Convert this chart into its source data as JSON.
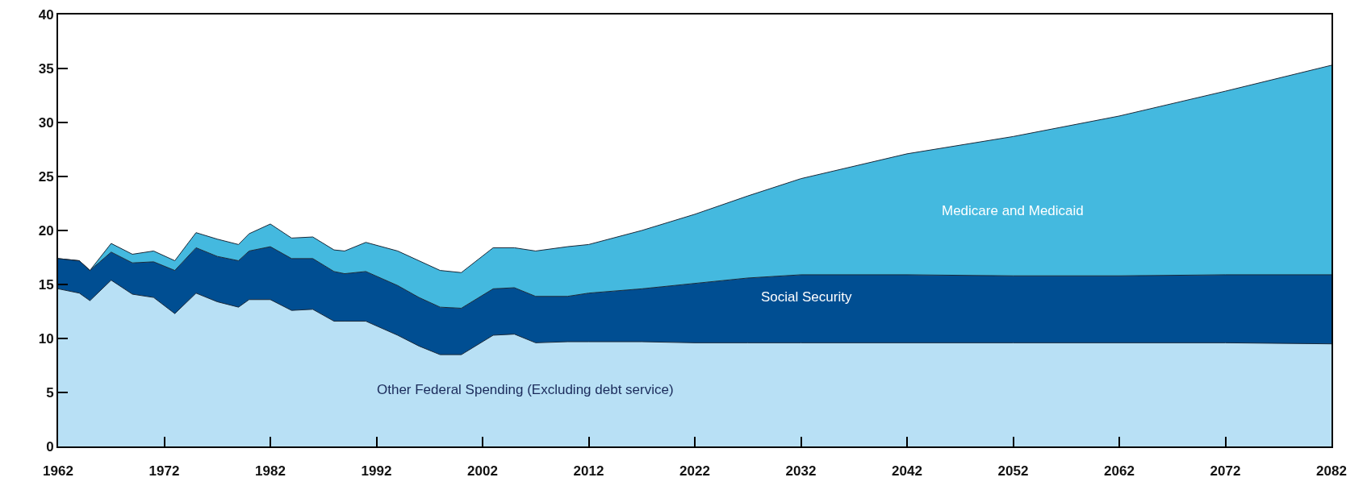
{
  "chart_data": {
    "type": "area",
    "stacked": true,
    "x": [
      1962,
      1964,
      1965,
      1967,
      1969,
      1971,
      1973,
      1975,
      1977,
      1979,
      1980,
      1982,
      1984,
      1986,
      1988,
      1989,
      1991,
      1994,
      1996,
      1998,
      2000,
      2003,
      2005,
      2007,
      2010,
      2012,
      2017,
      2022,
      2027,
      2032,
      2042,
      2052,
      2062,
      2072,
      2082
    ],
    "series": [
      {
        "name": "Other Federal Spending (Excluding debt service)",
        "color": "#b8e0f5",
        "values": [
          14.6,
          14.2,
          13.5,
          15.4,
          14.1,
          13.8,
          12.3,
          14.2,
          13.4,
          12.9,
          13.6,
          13.6,
          12.6,
          12.7,
          11.6,
          11.6,
          11.6,
          10.3,
          9.3,
          8.5,
          8.5,
          10.3,
          10.4,
          9.6,
          9.7,
          9.7,
          9.7,
          9.6,
          9.6,
          9.6,
          9.6,
          9.6,
          9.6,
          9.6,
          9.5
        ]
      },
      {
        "name": "Social Security",
        "color": "#004e92",
        "values": [
          2.8,
          3.0,
          2.8,
          2.6,
          2.9,
          3.3,
          4.0,
          4.2,
          4.2,
          4.3,
          4.5,
          4.9,
          4.8,
          4.7,
          4.6,
          4.4,
          4.6,
          4.6,
          4.5,
          4.4,
          4.3,
          4.3,
          4.3,
          4.3,
          4.2,
          4.5,
          4.9,
          5.5,
          6.0,
          6.3,
          6.3,
          6.2,
          6.2,
          6.3,
          6.4
        ]
      },
      {
        "name": "Medicare and Medicaid",
        "color": "#44b9df",
        "values": [
          0,
          0,
          0,
          0.8,
          0.8,
          1.0,
          0.9,
          1.4,
          1.6,
          1.5,
          1.6,
          2.1,
          1.9,
          2.0,
          2.0,
          2.1,
          2.7,
          3.2,
          3.4,
          3.4,
          3.3,
          3.8,
          3.7,
          4.2,
          4.6,
          4.5,
          5.4,
          6.4,
          7.6,
          8.9,
          11.2,
          12.9,
          14.8,
          17.0,
          19.4
        ]
      }
    ],
    "xlim": [
      1962,
      2082
    ],
    "xticks": [
      1962,
      1972,
      1982,
      1992,
      2002,
      2012,
      2022,
      2032,
      2042,
      2052,
      2062,
      2072,
      2082
    ],
    "ylim": [
      0,
      40
    ],
    "yticks": [
      0,
      5,
      10,
      15,
      20,
      25,
      30,
      35,
      40
    ],
    "grid": false,
    "legend": false
  }
}
